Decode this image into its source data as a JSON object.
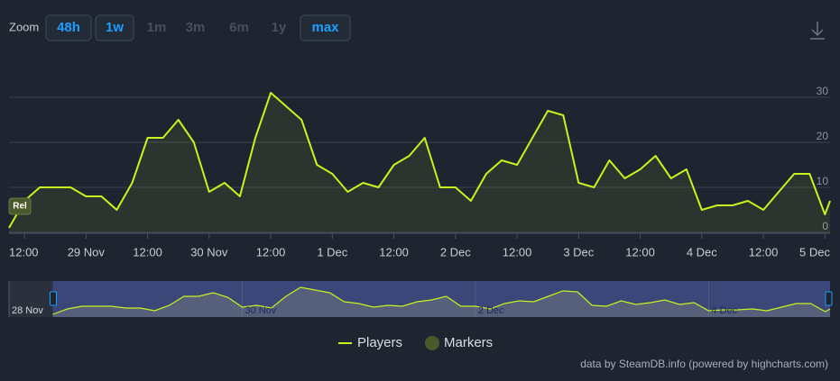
{
  "zoom": {
    "label": "Zoom",
    "buttons": [
      {
        "label": "48h",
        "enabled": true
      },
      {
        "label": "1w",
        "enabled": true
      },
      {
        "label": "1m",
        "enabled": false
      },
      {
        "label": "3m",
        "enabled": false
      },
      {
        "label": "6m",
        "enabled": false
      },
      {
        "label": "1y",
        "enabled": false
      },
      {
        "label": "max",
        "enabled": true
      }
    ]
  },
  "chart_data": {
    "type": "line",
    "x": [
      "28 Nov 09:00",
      "28 Nov 12:00",
      "28 Nov 15:00",
      "28 Nov 18:00",
      "28 Nov 21:00",
      "29 Nov 00:00",
      "29 Nov 03:00",
      "29 Nov 06:00",
      "29 Nov 09:00",
      "29 Nov 12:00",
      "29 Nov 15:00",
      "29 Nov 18:00",
      "29 Nov 21:00",
      "30 Nov 00:00",
      "30 Nov 03:00",
      "30 Nov 06:00",
      "30 Nov 09:00",
      "30 Nov 12:00",
      "30 Nov 15:00",
      "30 Nov 18:00",
      "30 Nov 21:00",
      "1 Dec 00:00",
      "1 Dec 03:00",
      "1 Dec 06:00",
      "1 Dec 09:00",
      "1 Dec 12:00",
      "1 Dec 15:00",
      "1 Dec 18:00",
      "1 Dec 21:00",
      "2 Dec 00:00",
      "2 Dec 03:00",
      "2 Dec 06:00",
      "2 Dec 09:00",
      "2 Dec 12:00",
      "2 Dec 15:00",
      "2 Dec 18:00",
      "2 Dec 21:00",
      "3 Dec 00:00",
      "3 Dec 03:00",
      "3 Dec 06:00",
      "3 Dec 09:00",
      "3 Dec 12:00",
      "3 Dec 15:00",
      "3 Dec 18:00",
      "3 Dec 21:00",
      "4 Dec 00:00",
      "4 Dec 03:00",
      "4 Dec 06:00",
      "4 Dec 09:00",
      "4 Dec 12:00",
      "4 Dec 15:00",
      "4 Dec 18:00",
      "4 Dec 21:00",
      "5 Dec 00:00",
      "5 Dec 01:00"
    ],
    "series": [
      {
        "name": "Players",
        "color": "#c8f31d",
        "values": [
          1,
          7,
          10,
          10,
          10,
          8,
          8,
          5,
          11,
          21,
          21,
          25,
          20,
          9,
          11,
          8,
          21,
          31,
          28,
          25,
          15,
          13,
          9,
          11,
          10,
          15,
          17,
          21,
          10,
          10,
          7,
          13,
          16,
          15,
          21,
          27,
          26,
          11,
          10,
          16,
          12,
          14,
          17,
          12,
          14,
          5,
          6,
          6,
          7,
          5,
          9,
          13,
          13,
          4,
          7
        ]
      }
    ],
    "markers": {
      "name": "Markers",
      "color": "#4b5a2d"
    },
    "annotations": [
      "Rel"
    ],
    "xlim": [
      "28 Nov 09:00",
      "5 Dec 01:00"
    ],
    "xticks": [
      {
        "value": "28 Nov 12:00",
        "label": "12:00"
      },
      {
        "value": "29 Nov 00:00",
        "label": "29 Nov"
      },
      {
        "value": "29 Nov 12:00",
        "label": "12:00"
      },
      {
        "value": "30 Nov 00:00",
        "label": "30 Nov"
      },
      {
        "value": "30 Nov 12:00",
        "label": "12:00"
      },
      {
        "value": "1 Dec 00:00",
        "label": "1 Dec"
      },
      {
        "value": "1 Dec 12:00",
        "label": "12:00"
      },
      {
        "value": "2 Dec 00:00",
        "label": "2 Dec"
      },
      {
        "value": "2 Dec 12:00",
        "label": "12:00"
      },
      {
        "value": "3 Dec 00:00",
        "label": "3 Dec"
      },
      {
        "value": "3 Dec 12:00",
        "label": "12:00"
      },
      {
        "value": "4 Dec 00:00",
        "label": "4 Dec"
      },
      {
        "value": "4 Dec 12:00",
        "label": "12:00"
      },
      {
        "value": "5 Dec 00:00",
        "label": "5 Dec"
      }
    ],
    "ylim": [
      0,
      40
    ],
    "yticks": [
      0,
      10,
      20,
      30
    ],
    "grid": true,
    "navigator": {
      "xlim": [
        "28 Nov 00:00",
        "5 Dec 01:00"
      ],
      "xticks": [
        {
          "value": "28 Nov 00:00",
          "label": "28 Nov"
        },
        {
          "value": "30 Nov 00:00",
          "label": "30 Nov"
        },
        {
          "value": "2 Dec 00:00",
          "label": "2 Dec"
        },
        {
          "value": "4 Dec 00:00",
          "label": "4 Dec"
        }
      ]
    },
    "credits": "data by SteamDB.info (powered by highcharts.com)"
  }
}
